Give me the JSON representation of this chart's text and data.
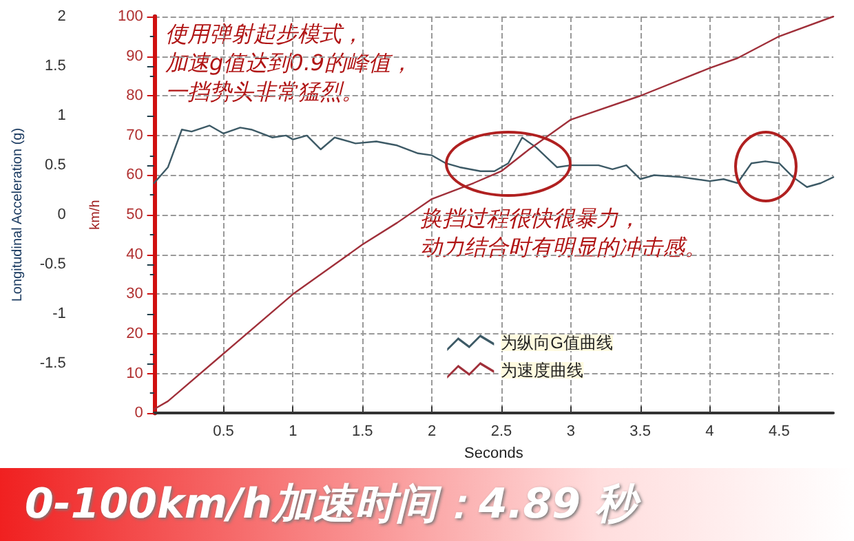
{
  "chart_data": {
    "type": "line",
    "title": "0-100km/h加速时间：4.89 秒",
    "xlabel": "Seconds",
    "ylabel": "Longitudinal Acceleration (g)",
    "y2label": "km/h",
    "annotations": [
      "使用弹射起步模式，加速g值达到0.9的峰值，一挡势头非常猛烈。",
      "换挡过程很快很暴力，动力结合时有明显的冲击感。"
    ],
    "xlim": [
      0,
      4.89
    ],
    "xticks": [
      0.5,
      1,
      1.5,
      2,
      2.5,
      3,
      3.5,
      4,
      4.5
    ],
    "ylim": [
      -2,
      2
    ],
    "yticks": [
      -1.5,
      -1,
      -0.5,
      0,
      0.5,
      1,
      1.5,
      2
    ],
    "y2lim": [
      0,
      100
    ],
    "y2ticks": [
      0,
      10,
      20,
      30,
      40,
      50,
      60,
      70,
      80,
      90,
      100
    ],
    "grid": true,
    "legend": "bottom right",
    "marker": "none",
    "line_style": "solid",
    "series": [
      {
        "name": "为纵向G值曲线",
        "color": "#3d5a66",
        "x": [
          0,
          0.1,
          0.2,
          0.27,
          0.4,
          0.5,
          0.62,
          0.7,
          0.85,
          0.95,
          1.0,
          1.1,
          1.2,
          1.3,
          1.45,
          1.6,
          1.75,
          1.9,
          2.0,
          2.1,
          2.2,
          2.35,
          2.45,
          2.55,
          2.65,
          2.75,
          2.9,
          3.0,
          3.2,
          3.3,
          3.4,
          3.5,
          3.6,
          3.8,
          3.9,
          4.0,
          4.1,
          4.2,
          4.3,
          4.4,
          4.5,
          4.6,
          4.7,
          4.8,
          4.89
        ],
        "values": [
          0.32,
          0.48,
          0.86,
          0.84,
          0.9,
          0.82,
          0.88,
          0.86,
          0.78,
          0.8,
          0.76,
          0.8,
          0.66,
          0.78,
          0.72,
          0.74,
          0.7,
          0.62,
          0.6,
          0.52,
          0.48,
          0.44,
          0.44,
          0.52,
          0.78,
          0.68,
          0.48,
          0.5,
          0.5,
          0.46,
          0.5,
          0.36,
          0.4,
          0.38,
          0.36,
          0.34,
          0.36,
          0.32,
          0.52,
          0.54,
          0.52,
          0.38,
          0.28,
          0.32,
          0.38
        ]
      },
      {
        "name": "为速度曲线",
        "color": "#a0303a",
        "axis": "y2",
        "x": [
          0,
          0.1,
          0.2,
          0.5,
          1.0,
          1.5,
          1.75,
          2.0,
          2.3,
          2.5,
          2.7,
          3.0,
          3.5,
          4.0,
          4.2,
          4.5,
          4.89
        ],
        "values": [
          1,
          3,
          6,
          15,
          30,
          42.5,
          48,
          54,
          58,
          61,
          66.5,
          74,
          80,
          87,
          89.5,
          95,
          100
        ]
      }
    ]
  }
}
